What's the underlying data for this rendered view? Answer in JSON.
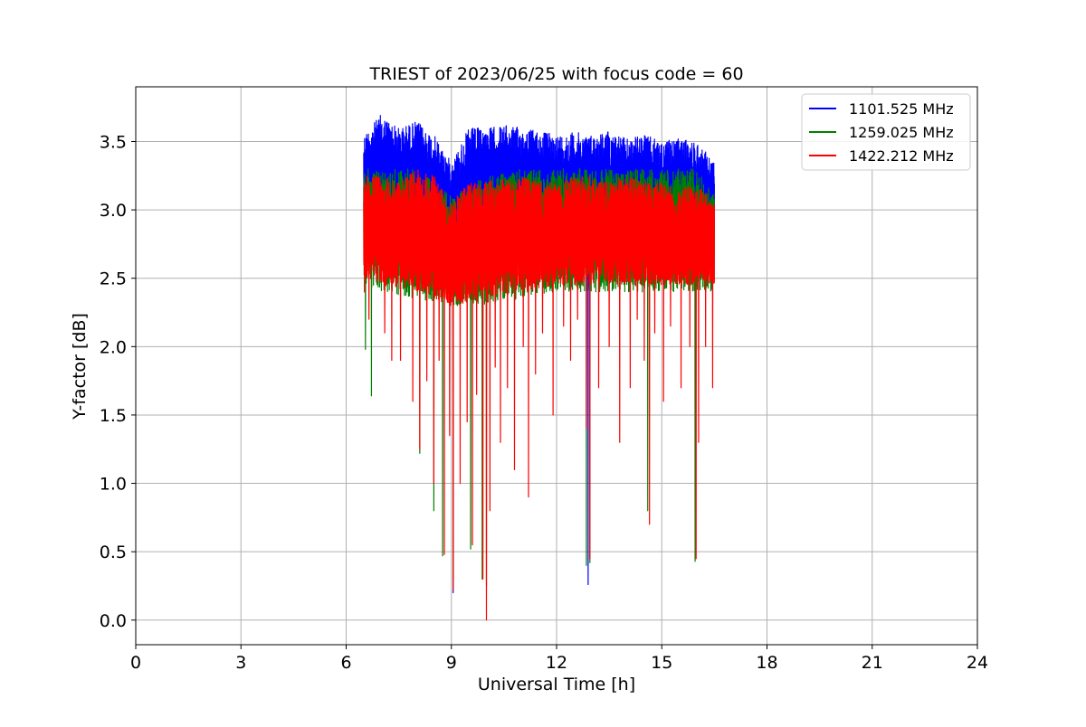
{
  "chart_data": {
    "type": "line",
    "title": "TRIEST of 2023/06/25 with focus code = 60",
    "xlabel": "Universal Time [h]",
    "ylabel": "Y-factor [dB]",
    "xlim": [
      0,
      24
    ],
    "ylim": [
      -0.18,
      3.9
    ],
    "xticks": [
      0,
      3,
      6,
      9,
      12,
      15,
      18,
      21,
      24
    ],
    "yticks": [
      0.0,
      0.5,
      1.0,
      1.5,
      2.0,
      2.5,
      3.0,
      3.5
    ],
    "grid": true,
    "legend_position": "top-right",
    "time_range": [
      6.5,
      16.5
    ],
    "series": [
      {
        "name": "1101.525 MHz",
        "color": "#0000ff",
        "upper_envelope": [
          [
            6.5,
            3.55
          ],
          [
            7.0,
            3.7
          ],
          [
            7.5,
            3.6
          ],
          [
            8.0,
            3.65
          ],
          [
            8.5,
            3.55
          ],
          [
            9.0,
            3.35
          ],
          [
            9.5,
            3.6
          ],
          [
            10.0,
            3.6
          ],
          [
            10.5,
            3.62
          ],
          [
            11.0,
            3.6
          ],
          [
            11.5,
            3.58
          ],
          [
            12.0,
            3.55
          ],
          [
            12.5,
            3.57
          ],
          [
            13.0,
            3.55
          ],
          [
            13.5,
            3.58
          ],
          [
            14.0,
            3.52
          ],
          [
            14.5,
            3.55
          ],
          [
            15.0,
            3.5
          ],
          [
            15.5,
            3.52
          ],
          [
            16.0,
            3.5
          ],
          [
            16.5,
            3.35
          ]
        ],
        "lower_envelope": [
          [
            6.5,
            2.95
          ],
          [
            7.0,
            2.9
          ],
          [
            8.0,
            2.85
          ],
          [
            9.0,
            2.75
          ],
          [
            10.0,
            2.8
          ],
          [
            11.0,
            2.85
          ],
          [
            12.0,
            2.8
          ],
          [
            13.0,
            2.8
          ],
          [
            14.0,
            2.8
          ],
          [
            15.0,
            2.8
          ],
          [
            16.0,
            2.8
          ],
          [
            16.5,
            2.8
          ]
        ],
        "dips": [
          [
            9.05,
            0.2
          ],
          [
            12.9,
            0.26
          ]
        ]
      },
      {
        "name": "1259.025 MHz",
        "color": "#008000",
        "upper_envelope": [
          [
            6.5,
            3.3
          ],
          [
            7.0,
            3.3
          ],
          [
            8.0,
            3.3
          ],
          [
            9.0,
            3.1
          ],
          [
            10.0,
            3.25
          ],
          [
            11.0,
            3.3
          ],
          [
            12.0,
            3.3
          ],
          [
            12.5,
            3.3
          ],
          [
            13.0,
            3.3
          ],
          [
            14.0,
            3.3
          ],
          [
            15.0,
            3.3
          ],
          [
            16.0,
            3.3
          ],
          [
            16.5,
            3.1
          ]
        ],
        "lower_envelope": [
          [
            6.5,
            2.45
          ],
          [
            7.0,
            2.4
          ],
          [
            8.0,
            2.35
          ],
          [
            9.0,
            2.3
          ],
          [
            10.0,
            2.3
          ],
          [
            11.0,
            2.35
          ],
          [
            12.0,
            2.4
          ],
          [
            13.0,
            2.4
          ],
          [
            14.0,
            2.4
          ],
          [
            15.0,
            2.4
          ],
          [
            16.0,
            2.4
          ],
          [
            16.5,
            2.4
          ]
        ],
        "dips": [
          [
            6.55,
            1.98
          ],
          [
            6.72,
            1.64
          ],
          [
            8.1,
            1.22
          ],
          [
            8.5,
            0.8
          ],
          [
            8.75,
            0.47
          ],
          [
            9.05,
            0.3
          ],
          [
            9.55,
            0.52
          ],
          [
            9.88,
            0.3
          ],
          [
            10.0,
            0.25
          ],
          [
            12.85,
            0.4
          ],
          [
            12.95,
            0.42
          ],
          [
            14.6,
            0.8
          ],
          [
            15.95,
            0.43
          ]
        ]
      },
      {
        "name": "1422.212 MHz",
        "color": "#ff0000",
        "upper_envelope": [
          [
            6.5,
            3.25
          ],
          [
            7.0,
            3.25
          ],
          [
            7.5,
            3.2
          ],
          [
            8.0,
            3.3
          ],
          [
            8.5,
            3.25
          ],
          [
            9.0,
            3.05
          ],
          [
            9.5,
            3.2
          ],
          [
            10.0,
            3.2
          ],
          [
            10.5,
            3.25
          ],
          [
            11.0,
            3.25
          ],
          [
            11.5,
            3.2
          ],
          [
            12.0,
            3.2
          ],
          [
            12.5,
            3.25
          ],
          [
            13.0,
            3.25
          ],
          [
            13.5,
            3.2
          ],
          [
            14.0,
            3.25
          ],
          [
            14.5,
            3.2
          ],
          [
            15.0,
            3.2
          ],
          [
            15.5,
            3.15
          ],
          [
            16.0,
            3.2
          ],
          [
            16.5,
            3.05
          ]
        ],
        "lower_envelope": [
          [
            6.5,
            2.5
          ],
          [
            7.0,
            2.45
          ],
          [
            8.0,
            2.4
          ],
          [
            9.0,
            2.3
          ],
          [
            10.0,
            2.35
          ],
          [
            11.0,
            2.4
          ],
          [
            12.0,
            2.45
          ],
          [
            13.0,
            2.45
          ],
          [
            14.0,
            2.45
          ],
          [
            15.0,
            2.45
          ],
          [
            16.0,
            2.45
          ],
          [
            16.5,
            2.45
          ]
        ],
        "dips": [
          [
            6.52,
            2.4
          ],
          [
            6.65,
            2.2
          ],
          [
            7.1,
            2.1
          ],
          [
            7.3,
            1.9
          ],
          [
            7.55,
            1.9
          ],
          [
            7.9,
            1.6
          ],
          [
            8.1,
            1.25
          ],
          [
            8.3,
            1.75
          ],
          [
            8.5,
            1.0
          ],
          [
            8.65,
            1.9
          ],
          [
            8.8,
            0.48
          ],
          [
            8.95,
            1.35
          ],
          [
            9.05,
            0.22
          ],
          [
            9.25,
            1.0
          ],
          [
            9.45,
            1.45
          ],
          [
            9.6,
            0.55
          ],
          [
            9.72,
            1.65
          ],
          [
            9.9,
            0.3
          ],
          [
            10.0,
            0.0
          ],
          [
            10.1,
            0.8
          ],
          [
            10.25,
            1.85
          ],
          [
            10.4,
            1.3
          ],
          [
            10.6,
            1.7
          ],
          [
            10.8,
            1.1
          ],
          [
            11.05,
            2.0
          ],
          [
            11.2,
            0.9
          ],
          [
            11.4,
            1.8
          ],
          [
            11.6,
            2.1
          ],
          [
            11.9,
            1.5
          ],
          [
            12.2,
            2.15
          ],
          [
            12.4,
            1.9
          ],
          [
            12.6,
            2.2
          ],
          [
            12.85,
            1.4
          ],
          [
            12.95,
            0.45
          ],
          [
            13.2,
            1.7
          ],
          [
            13.5,
            2.0
          ],
          [
            13.8,
            1.3
          ],
          [
            14.1,
            1.7
          ],
          [
            14.3,
            2.2
          ],
          [
            14.5,
            1.9
          ],
          [
            14.65,
            0.7
          ],
          [
            14.8,
            2.1
          ],
          [
            15.05,
            1.6
          ],
          [
            15.25,
            2.15
          ],
          [
            15.55,
            1.7
          ],
          [
            15.8,
            2.0
          ],
          [
            15.98,
            0.45
          ],
          [
            16.05,
            1.3
          ],
          [
            16.25,
            2.0
          ],
          [
            16.45,
            1.7
          ]
        ]
      }
    ]
  }
}
